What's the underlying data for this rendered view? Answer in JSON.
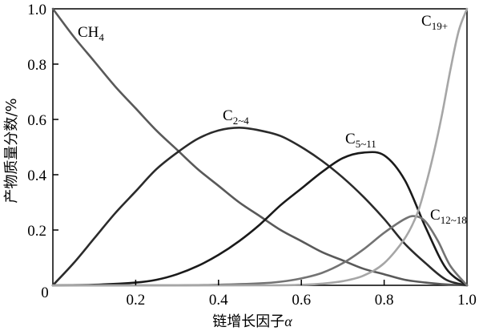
{
  "chart_data": {
    "type": "line",
    "xlabel": "链增长因子α",
    "xlabel_text": "链增长因子",
    "xlabel_var": "α",
    "ylabel": "产物质量分数/%",
    "xlim": [
      0,
      1.0
    ],
    "ylim": [
      0,
      1.0
    ],
    "x_ticks": [
      "0.2",
      "0.4",
      "0.6",
      "0.8",
      "1.0"
    ],
    "y_ticks": [
      "0",
      "0.2",
      "0.4",
      "0.6",
      "0.8",
      "1.0"
    ],
    "grid": false,
    "legend": "none",
    "series": [
      {
        "name": "CH4",
        "label_main": "CH",
        "label_sub": "4",
        "color": "#595959",
        "x": [
          0,
          0.05,
          0.1,
          0.15,
          0.2,
          0.25,
          0.3,
          0.35,
          0.4,
          0.45,
          0.5,
          0.55,
          0.6,
          0.65,
          0.7,
          0.75,
          0.8,
          0.85,
          0.9,
          0.95,
          1.0
        ],
        "y": [
          1.0,
          0.9,
          0.81,
          0.72,
          0.64,
          0.56,
          0.49,
          0.42,
          0.36,
          0.3,
          0.25,
          0.2,
          0.16,
          0.12,
          0.09,
          0.06,
          0.04,
          0.02,
          0.01,
          0.003,
          0
        ]
      },
      {
        "name": "C2~4",
        "label_main": "C",
        "label_sub": "2~4",
        "color": "#2b2b2b",
        "x": [
          0,
          0.05,
          0.1,
          0.15,
          0.2,
          0.25,
          0.3,
          0.35,
          0.4,
          0.45,
          0.5,
          0.55,
          0.6,
          0.65,
          0.7,
          0.75,
          0.8,
          0.85,
          0.9,
          0.95,
          1.0
        ],
        "y": [
          0,
          0.08,
          0.17,
          0.26,
          0.34,
          0.42,
          0.48,
          0.53,
          0.56,
          0.57,
          0.56,
          0.54,
          0.5,
          0.45,
          0.39,
          0.32,
          0.24,
          0.15,
          0.08,
          0.02,
          0
        ]
      },
      {
        "name": "C5~11",
        "label_main": "C",
        "label_sub": "5~11",
        "color": "#1a1a1a",
        "x": [
          0,
          0.1,
          0.2,
          0.25,
          0.3,
          0.35,
          0.4,
          0.45,
          0.5,
          0.55,
          0.6,
          0.65,
          0.7,
          0.75,
          0.8,
          0.85,
          0.9,
          0.95,
          1.0
        ],
        "y": [
          0,
          0.002,
          0.01,
          0.02,
          0.04,
          0.07,
          0.11,
          0.16,
          0.22,
          0.29,
          0.35,
          0.41,
          0.46,
          0.48,
          0.47,
          0.38,
          0.21,
          0.06,
          0
        ]
      },
      {
        "name": "C12~18",
        "label_main": "C",
        "label_sub": "12~18",
        "color": "#737373",
        "x": [
          0,
          0.3,
          0.4,
          0.5,
          0.55,
          0.6,
          0.65,
          0.7,
          0.75,
          0.8,
          0.85,
          0.875,
          0.9,
          0.93,
          0.96,
          1.0
        ],
        "y": [
          0,
          0.0,
          0.002,
          0.007,
          0.013,
          0.025,
          0.045,
          0.08,
          0.13,
          0.19,
          0.24,
          0.25,
          0.23,
          0.16,
          0.07,
          0
        ]
      },
      {
        "name": "C19+",
        "label_main": "C",
        "label_sub": "19+",
        "color": "#a6a6a6",
        "x": [
          0,
          0.5,
          0.6,
          0.65,
          0.7,
          0.75,
          0.8,
          0.85,
          0.88,
          0.9,
          0.92,
          0.94,
          0.96,
          0.98,
          1.0
        ],
        "y": [
          0,
          0.0,
          0.002,
          0.006,
          0.015,
          0.035,
          0.08,
          0.17,
          0.26,
          0.36,
          0.48,
          0.62,
          0.78,
          0.92,
          1.0
        ]
      }
    ]
  }
}
